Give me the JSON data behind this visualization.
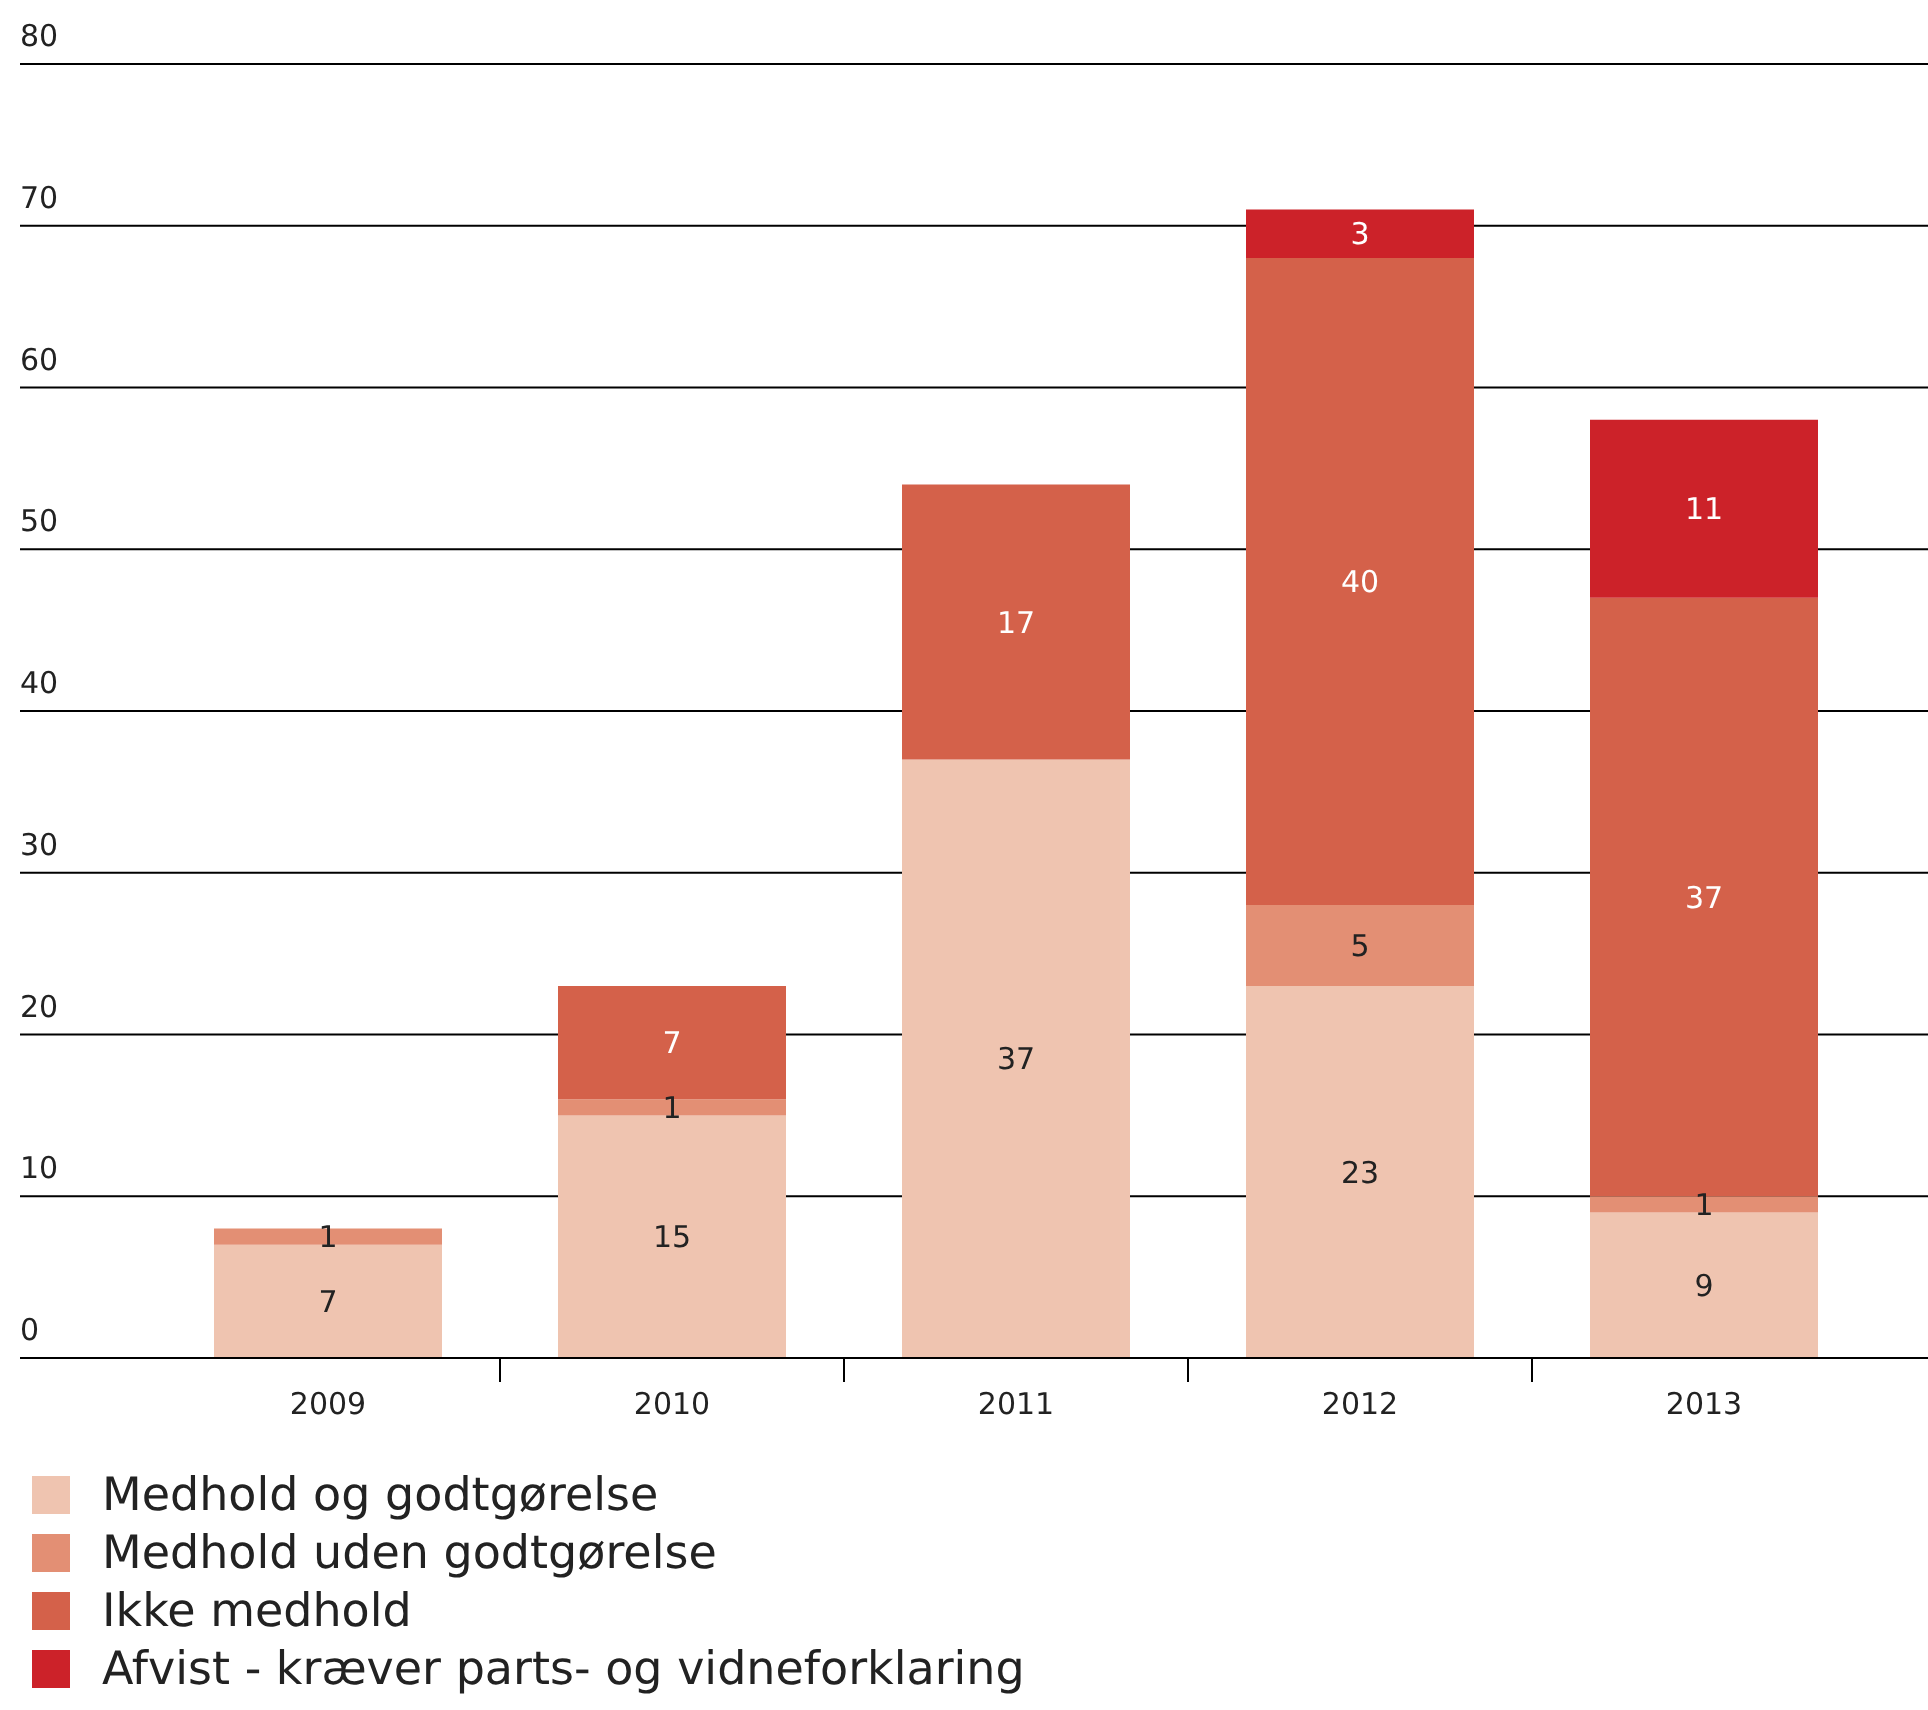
{
  "chart_data": {
    "type": "bar",
    "stacked": true,
    "categories": [
      "2009",
      "2010",
      "2011",
      "2012",
      "2013"
    ],
    "series": [
      {
        "name": "Medhold og godtgørelse",
        "color": "#efc4b0",
        "values": [
          7,
          15,
          37,
          23,
          9
        ]
      },
      {
        "name": "Medhold uden godtgørelse",
        "color": "#e38f74",
        "values": [
          1,
          1,
          null,
          5,
          1
        ]
      },
      {
        "name": "Ikke medhold",
        "color": "#d4614a",
        "values": [
          null,
          7,
          17,
          40,
          37
        ]
      },
      {
        "name": "Afvist - kræver parts- og vidneforklaring",
        "color": "#cc2229",
        "values": [
          null,
          null,
          null,
          3,
          11
        ]
      }
    ],
    "ylim": [
      0,
      80
    ],
    "yticks": [
      0,
      10,
      20,
      30,
      40,
      50,
      60,
      70,
      80
    ],
    "grid": "y",
    "legend": "bottom",
    "data_labels": true
  }
}
